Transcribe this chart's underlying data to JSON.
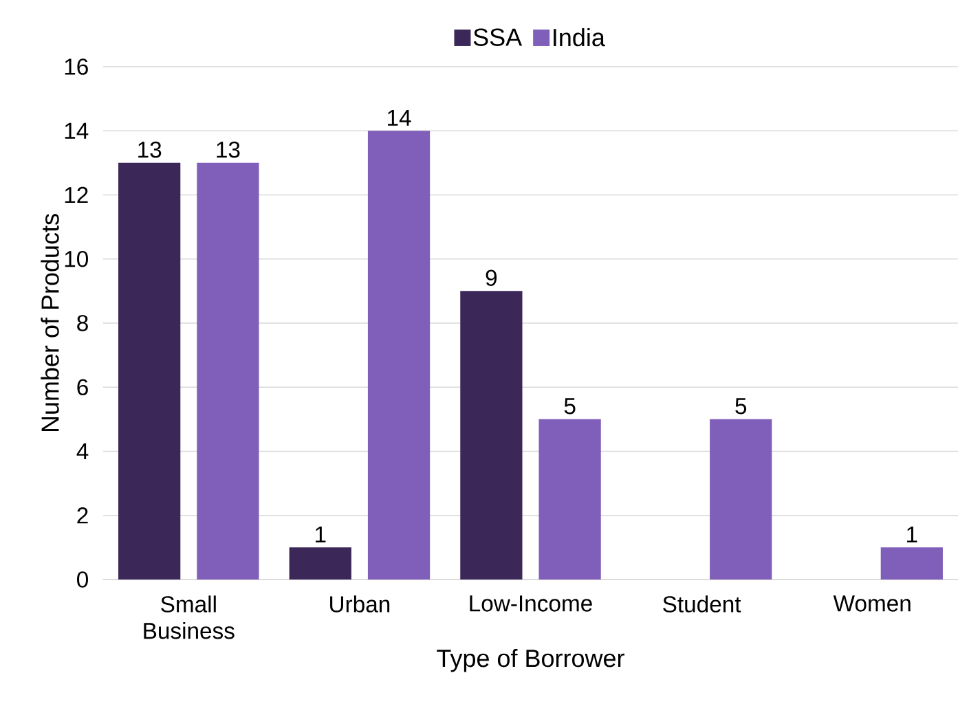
{
  "chart_data": {
    "type": "bar",
    "xlabel": "Type of Borrower",
    "ylabel": "Number of Products",
    "categories": [
      "Small Business",
      "Urban",
      "Low-Income",
      "Student",
      "Women"
    ],
    "series": [
      {
        "name": "SSA",
        "color": "#3b2859",
        "values": [
          13,
          1,
          9,
          null,
          null
        ]
      },
      {
        "name": "India",
        "color": "#7f5fb9",
        "values": [
          13,
          14,
          5,
          5,
          1
        ]
      }
    ],
    "ylim": [
      0,
      16
    ],
    "yticks": [
      0,
      2,
      4,
      6,
      8,
      10,
      12,
      14,
      16
    ],
    "grid": "y",
    "legend": "top",
    "data_labels": true
  }
}
